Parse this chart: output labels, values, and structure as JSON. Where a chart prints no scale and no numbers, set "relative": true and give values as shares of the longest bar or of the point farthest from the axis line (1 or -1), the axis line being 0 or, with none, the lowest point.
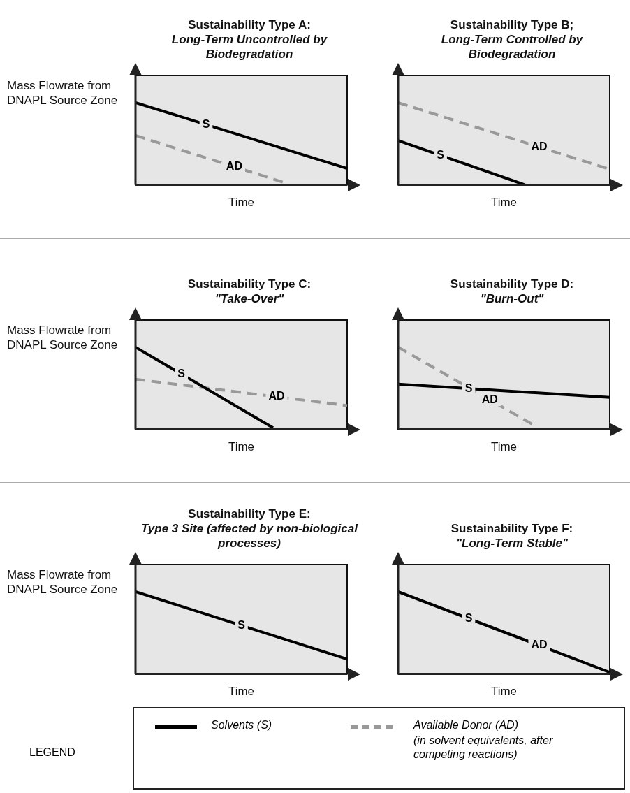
{
  "chart_data": [
    {
      "type": "line",
      "title": "Sustainability Type A:",
      "subtitle": "Long-Term Uncontrolled by Biodegradation",
      "xlabel": "Time",
      "ylabel": "Mass Flowrate from DNAPL Source Zone",
      "relative": true,
      "tick_labels": false,
      "legend": false,
      "marker": "none",
      "categories": [
        null,
        null,
        null,
        null,
        null,
        null,
        null,
        null,
        null,
        null,
        null,
        null,
        null,
        null,
        null,
        null,
        null,
        null,
        null,
        null,
        null
      ],
      "series": [
        {
          "name": "S",
          "color": "#000000",
          "line_style": "solid",
          "values": [
            1,
            null,
            null,
            null,
            null,
            null,
            null,
            null,
            null,
            null,
            null,
            null,
            null,
            null,
            null,
            null,
            null,
            null,
            null,
            null,
            0.2
          ]
        },
        {
          "name": "AD",
          "color": "#999999",
          "line_style": "dashed",
          "values": [
            0.6,
            null,
            null,
            null,
            null,
            null,
            null,
            null,
            null,
            null,
            null,
            null,
            null,
            null,
            0.03,
            null,
            null,
            null,
            null,
            null,
            null
          ]
        }
      ]
    },
    {
      "type": "line",
      "title": "Sustainability Type B;",
      "subtitle": "Long-Term Controlled by Biodegradation",
      "xlabel": "Time",
      "relative": true,
      "tick_labels": false,
      "legend": false,
      "marker": "none",
      "categories": [
        null,
        null,
        null,
        null,
        null,
        null,
        null,
        null,
        null,
        null,
        null,
        null,
        null,
        null,
        null,
        null,
        null,
        null,
        null,
        null,
        null
      ],
      "series": [
        {
          "name": "S",
          "color": "#000000",
          "line_style": "solid",
          "values": [
            0.54,
            null,
            null,
            null,
            null,
            null,
            null,
            null,
            null,
            null,
            null,
            null,
            0,
            null,
            null,
            null,
            null,
            null,
            null,
            null,
            null
          ]
        },
        {
          "name": "AD",
          "color": "#999999",
          "line_style": "dashed",
          "values": [
            1,
            null,
            null,
            null,
            null,
            null,
            null,
            null,
            null,
            null,
            null,
            null,
            null,
            null,
            null,
            null,
            null,
            null,
            null,
            null,
            0.19
          ]
        }
      ]
    },
    {
      "type": "line",
      "title": "Sustainability Type C:",
      "subtitle": "\"Take-Over\"",
      "xlabel": "Time",
      "ylabel": "Mass Flowrate from DNAPL Source Zone",
      "relative": true,
      "tick_labels": false,
      "legend": false,
      "marker": "none",
      "categories": [
        null,
        null,
        null,
        null,
        null,
        null,
        null,
        null,
        null,
        null,
        null,
        null,
        null,
        null,
        null,
        null,
        null,
        null,
        null,
        null,
        null
      ],
      "series": [
        {
          "name": "S",
          "color": "#000000",
          "line_style": "solid",
          "values": [
            1,
            null,
            null,
            null,
            null,
            null,
            null,
            null,
            null,
            null,
            null,
            null,
            null,
            0.02,
            null,
            null,
            null,
            null,
            null,
            null,
            null
          ]
        },
        {
          "name": "AD",
          "color": "#999999",
          "line_style": "dashed",
          "values": [
            0.61,
            null,
            null,
            null,
            null,
            null,
            null,
            null,
            null,
            null,
            null,
            null,
            null,
            null,
            null,
            null,
            null,
            null,
            null,
            null,
            0.29
          ]
        }
      ]
    },
    {
      "type": "line",
      "title": "Sustainability Type D:",
      "subtitle": "\"Burn-Out\"",
      "xlabel": "Time",
      "relative": true,
      "tick_labels": false,
      "legend": false,
      "marker": "none",
      "categories": [
        null,
        null,
        null,
        null,
        null,
        null,
        null,
        null,
        null,
        null,
        null,
        null,
        null,
        null,
        null,
        null,
        null,
        null,
        null,
        null,
        null
      ],
      "series": [
        {
          "name": "S",
          "color": "#000000",
          "line_style": "solid",
          "values": [
            0.55,
            null,
            null,
            null,
            null,
            null,
            null,
            null,
            null,
            null,
            null,
            null,
            null,
            null,
            null,
            null,
            null,
            null,
            null,
            null,
            0.39
          ]
        },
        {
          "name": "AD",
          "color": "#999999",
          "line_style": "dashed",
          "values": [
            1,
            null,
            null,
            null,
            null,
            null,
            null,
            null,
            null,
            null,
            null,
            null,
            null,
            0.04,
            null,
            null,
            null,
            null,
            null,
            null,
            null
          ]
        }
      ]
    },
    {
      "type": "line",
      "title": "Sustainability Type E:",
      "subtitle": "Type 3 Site (affected by non-biological processes)",
      "xlabel": "Time",
      "ylabel": "Mass Flowrate from DNAPL Source Zone",
      "relative": true,
      "tick_labels": false,
      "legend": false,
      "marker": "none",
      "categories": [
        null,
        null,
        null,
        null,
        null,
        null,
        null,
        null,
        null,
        null,
        null,
        null,
        null,
        null,
        null,
        null,
        null,
        null,
        null,
        null
      ],
      "series": [
        {
          "name": "S",
          "color": "#000000",
          "line_style": "solid",
          "values": [
            1,
            null,
            null,
            null,
            null,
            null,
            null,
            null,
            null,
            null,
            null,
            null,
            null,
            null,
            null,
            null,
            null,
            null,
            null,
            0.18
          ]
        }
      ]
    },
    {
      "type": "line",
      "title": "Sustainability Type F:",
      "subtitle": "\"Long-Term Stable\"",
      "xlabel": "Time",
      "relative": true,
      "tick_labels": false,
      "legend": false,
      "marker": "none",
      "categories": [
        null,
        null,
        null,
        null,
        null,
        null,
        null,
        null,
        null,
        null,
        null,
        null,
        null,
        null,
        null,
        null,
        null,
        null,
        null,
        null,
        null
      ],
      "series": [
        {
          "name": "S",
          "color": "#000000",
          "line_style": "solid",
          "values": [
            1,
            null,
            null,
            null,
            null,
            null,
            null,
            null,
            null,
            null,
            null,
            null,
            null,
            null,
            null,
            null,
            null,
            null,
            null,
            null,
            0.02
          ]
        },
        {
          "name": "AD",
          "color": "#999999",
          "line_style": "dashed",
          "values": [
            1,
            null,
            null,
            null,
            null,
            null,
            null,
            null,
            null,
            null,
            null,
            null,
            null,
            null,
            null,
            null,
            null,
            null,
            null,
            null,
            0.02
          ]
        }
      ]
    },
    {
      "type": "other",
      "title": "LEGEND",
      "annotations": [
        "Solvents (S)",
        "Available Donor (AD)",
        "(in solvent equivalents, after competing reactions)"
      ]
    }
  ]
}
